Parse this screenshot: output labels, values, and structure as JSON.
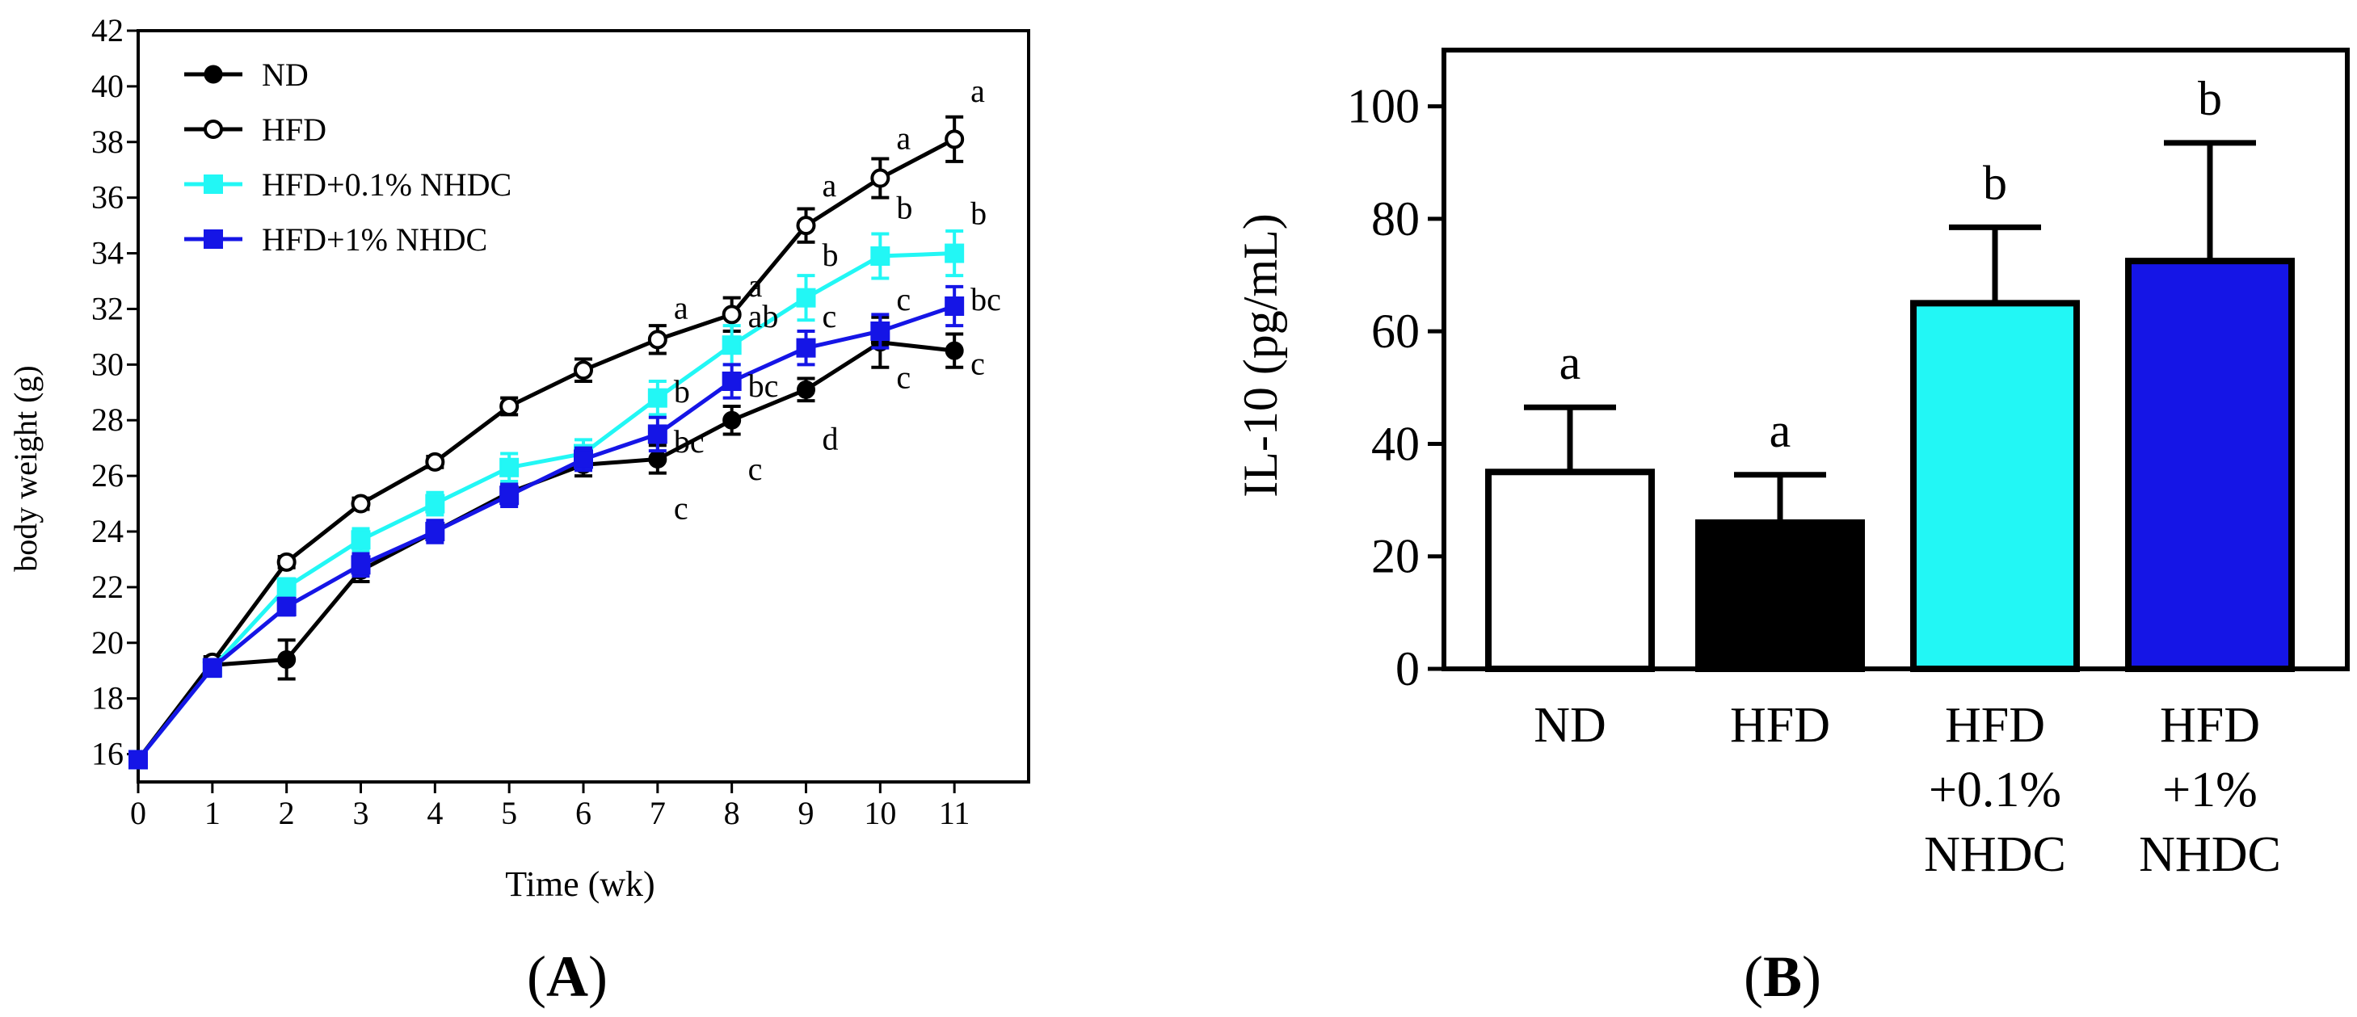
{
  "colors": {
    "nd": "#000000",
    "hfd": "#000000",
    "low": "#22f7f5",
    "high": "#1515e6",
    "axis": "#000000",
    "white": "#ffffff"
  },
  "chart_data": [
    {
      "panel": "A",
      "panel_label": "(A)",
      "panel_letter": "A",
      "type": "line",
      "xlabel": "Time (wk)",
      "ylabel": "body weight (g)",
      "xlim": [
        0,
        12
      ],
      "ylim": [
        15,
        42
      ],
      "xticks": [
        "0",
        "1",
        "2",
        "3",
        "4",
        "5",
        "6",
        "7",
        "8",
        "9",
        "10",
        "11"
      ],
      "yticks": [
        "16",
        "18",
        "20",
        "22",
        "24",
        "26",
        "28",
        "30",
        "32",
        "34",
        "36",
        "38",
        "40",
        "42"
      ],
      "legend_position": "top-left",
      "x": [
        0,
        1,
        2,
        3,
        4,
        5,
        6,
        7,
        8,
        9,
        10,
        11
      ],
      "series": [
        {
          "key": "nd",
          "name": "ND",
          "marker": "filled-circle",
          "color": "#000000",
          "values": [
            15.8,
            19.2,
            19.4,
            22.6,
            24.0,
            25.4,
            26.4,
            26.6,
            28.0,
            29.1,
            30.8,
            30.5
          ],
          "errors": [
            0.2,
            0.3,
            0.7,
            0.4,
            0.3,
            0.3,
            0.4,
            0.5,
            0.5,
            0.4,
            0.9,
            0.6
          ]
        },
        {
          "key": "hfd",
          "name": "HFD",
          "marker": "open-circle",
          "color": "#000000",
          "values": [
            15.8,
            19.3,
            22.9,
            25.0,
            26.5,
            28.5,
            29.8,
            30.9,
            31.8,
            35.0,
            36.7,
            38.1
          ],
          "errors": [
            0.2,
            0.2,
            0.2,
            0.2,
            0.2,
            0.3,
            0.4,
            0.5,
            0.6,
            0.6,
            0.7,
            0.8
          ]
        },
        {
          "key": "low",
          "name": "HFD+0.1% NHDC",
          "marker": "filled-square",
          "color": "#22f7f5",
          "values": [
            15.8,
            19.1,
            22.0,
            23.7,
            25.0,
            26.3,
            26.8,
            28.8,
            30.7,
            32.4,
            33.9,
            34.0
          ],
          "errors": [
            0.2,
            0.3,
            0.3,
            0.4,
            0.4,
            0.5,
            0.5,
            0.6,
            0.7,
            0.8,
            0.8,
            0.8
          ]
        },
        {
          "key": "high",
          "name": "HFD+1% NHDC",
          "marker": "filled-square",
          "color": "#1515e6",
          "values": [
            15.8,
            19.1,
            21.3,
            22.8,
            24.0,
            25.3,
            26.6,
            27.5,
            29.4,
            30.6,
            31.2,
            32.1
          ],
          "errors": [
            0.2,
            0.3,
            0.3,
            0.4,
            0.4,
            0.4,
            0.4,
            0.6,
            0.6,
            0.6,
            0.6,
            0.7
          ]
        }
      ],
      "annotations": [
        {
          "x": 7,
          "y": 32.0,
          "text": "a"
        },
        {
          "x": 7,
          "y": 29.0,
          "text": "b"
        },
        {
          "x": 7,
          "y": 27.2,
          "text": "bc"
        },
        {
          "x": 7,
          "y": 24.8,
          "text": "c"
        },
        {
          "x": 8,
          "y": 32.8,
          "text": "a"
        },
        {
          "x": 8,
          "y": 31.7,
          "text": "ab"
        },
        {
          "x": 8,
          "y": 29.2,
          "text": "bc"
        },
        {
          "x": 8,
          "y": 26.2,
          "text": "c"
        },
        {
          "x": 9,
          "y": 36.4,
          "text": "a"
        },
        {
          "x": 9,
          "y": 33.9,
          "text": "b"
        },
        {
          "x": 9,
          "y": 31.7,
          "text": "c"
        },
        {
          "x": 9,
          "y": 27.3,
          "text": "d"
        },
        {
          "x": 10,
          "y": 38.1,
          "text": "a"
        },
        {
          "x": 10,
          "y": 35.6,
          "text": "b"
        },
        {
          "x": 10,
          "y": 32.3,
          "text": "c"
        },
        {
          "x": 10,
          "y": 29.5,
          "text": "c"
        },
        {
          "x": 11,
          "y": 39.8,
          "text": "a"
        },
        {
          "x": 11,
          "y": 35.4,
          "text": "b"
        },
        {
          "x": 11,
          "y": 32.3,
          "text": "bc"
        },
        {
          "x": 11,
          "y": 30.0,
          "text": "c"
        }
      ]
    },
    {
      "panel": "B",
      "panel_label": "(B)",
      "panel_letter": "B",
      "type": "bar",
      "ylabel": "IL-10 (pg/mL)",
      "ylim": [
        0,
        110
      ],
      "yticks": [
        "0",
        "20",
        "40",
        "60",
        "80",
        "100"
      ],
      "categories": [
        {
          "lines": [
            "ND"
          ]
        },
        {
          "lines": [
            "HFD"
          ]
        },
        {
          "lines": [
            "HFD",
            "+0.1%",
            "NHDC"
          ]
        },
        {
          "lines": [
            "HFD",
            "+1%",
            "NHDC"
          ]
        }
      ],
      "values": [
        35.0,
        26.0,
        65.0,
        72.5
      ],
      "errors": [
        11.5,
        8.5,
        13.5,
        21.0
      ],
      "fills": [
        "#ffffff",
        "#000000",
        "#22f7f5",
        "#1515e6"
      ],
      "letters": [
        "a",
        "a",
        "b",
        "b"
      ]
    }
  ]
}
